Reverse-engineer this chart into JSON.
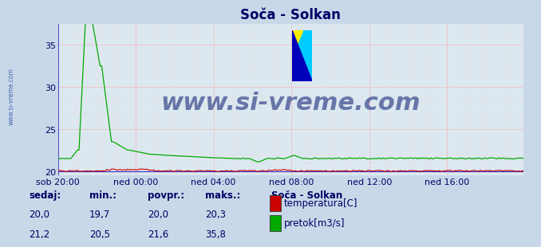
{
  "title": "Soča - Solkan",
  "bg_color": "#c8d8e8",
  "plot_bg_color": "#dce8f0",
  "grid_color_major": "#ff9999",
  "grid_color_minor": "#ffcccc",
  "x_labels": [
    "sob 20:00",
    "ned 00:00",
    "ned 04:00",
    "ned 08:00",
    "ned 12:00",
    "ned 16:00"
  ],
  "x_ticks_pos": [
    0,
    48,
    96,
    144,
    192,
    240
  ],
  "total_points": 288,
  "ylim": [
    19.5,
    37.5
  ],
  "yticks": [
    20,
    25,
    30,
    35
  ],
  "temp_color": "#cc0000",
  "flow_color": "#00aa00",
  "height_color": "#3333cc",
  "dashed_line_color": "#cc0000",
  "dashed_line_value": 20.0,
  "watermark_text": "www.si-vreme.com",
  "watermark_color": "#1a2a7a",
  "watermark_alpha": 0.6,
  "watermark_fontsize": 22,
  "title_color": "#000066",
  "title_fontsize": 12,
  "axis_label_color": "#000066",
  "axis_label_fontsize": 8,
  "legend_title": "Soča - Solkan",
  "legend_entries": [
    "temperatura[C]",
    "pretok[m3/s]"
  ],
  "legend_colors": [
    "#cc0000",
    "#00aa00"
  ],
  "stats_headers": [
    "sedaj:",
    "min.:",
    "povpr.:",
    "maks.:"
  ],
  "stats_temp": [
    "20,0",
    "19,7",
    "20,0",
    "20,3"
  ],
  "stats_flow": [
    "21,2",
    "20,5",
    "21,6",
    "35,8"
  ],
  "stats_color": "#000066",
  "stats_fontsize": 8.5,
  "side_watermark": "www.si-vreme.com",
  "side_watermark_color": "#3355aa",
  "left_border_color": "#3333cc",
  "bottom_border_color": "#cc0000"
}
